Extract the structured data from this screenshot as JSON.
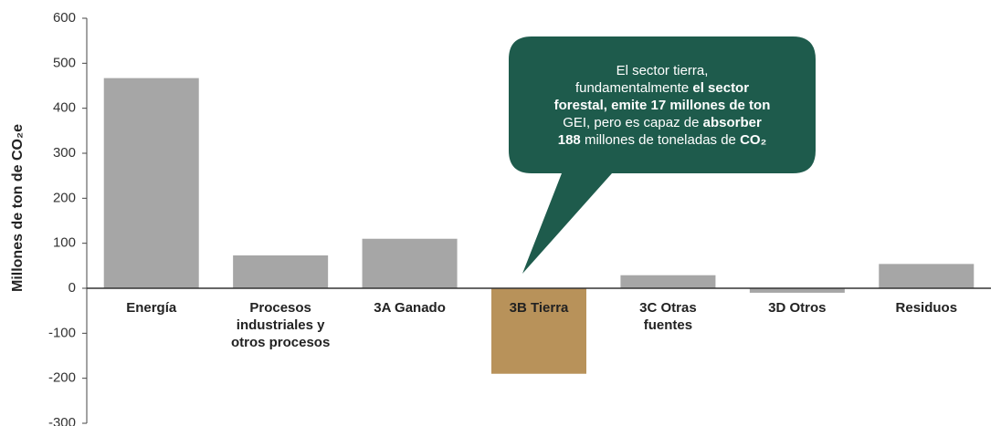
{
  "chart_data": {
    "type": "bar",
    "y_label": "Millones de ton de CO₂e",
    "categories": [
      "Energía",
      "Procesos industriales y otros procesos",
      "3A Ganado",
      "3B Tierra",
      "3C Otras fuentes",
      "3D Otros",
      "Residuos"
    ],
    "values": [
      467,
      73,
      110,
      -190,
      29,
      -10,
      54
    ],
    "colors": [
      "#a6a6a6",
      "#a6a6a6",
      "#a6a6a6",
      "#b8925a",
      "#a6a6a6",
      "#a6a6a6",
      "#a6a6a6"
    ],
    "ylim": [
      -300,
      600
    ],
    "yticks": [
      -300,
      -200,
      -100,
      0,
      100,
      200,
      300,
      400,
      500,
      600
    ],
    "annotation": [
      [
        {
          "text": "El sector tierra,",
          "bold": false
        }
      ],
      [
        {
          "text": "fundamentalmente ",
          "bold": false
        },
        {
          "text": "el sector",
          "bold": true
        }
      ],
      [
        {
          "text": "forestal, emite 17 millones de ton",
          "bold": true
        }
      ],
      [
        {
          "text": "GEI, pero es capaz de ",
          "bold": false
        },
        {
          "text": "absorber",
          "bold": true
        }
      ],
      [
        {
          "text": "188",
          "bold": true
        },
        {
          "text": " millones de toneladas de ",
          "bold": false
        },
        {
          "text": "CO₂",
          "bold": true
        }
      ]
    ]
  }
}
